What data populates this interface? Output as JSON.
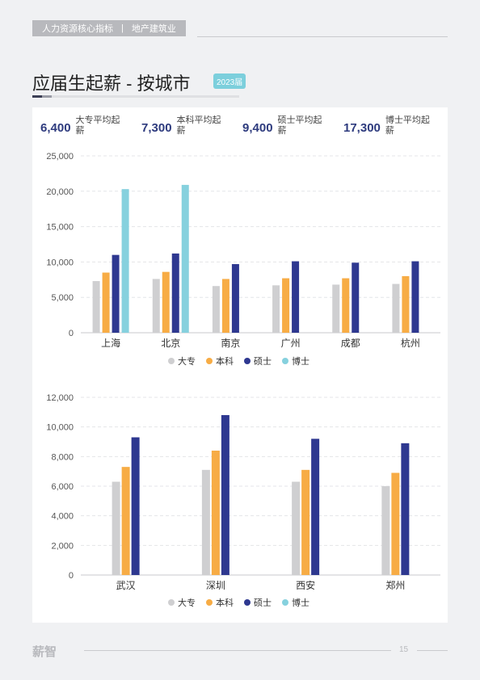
{
  "header": {
    "category": "人力资源核心指标",
    "separator": "|",
    "industry": "地产建筑业"
  },
  "title": "应届生起薪 - 按城市",
  "badge": "2023届",
  "stats": [
    {
      "value": "6,400",
      "label": "大专平均起薪"
    },
    {
      "value": "7,300",
      "label": "本科平均起薪"
    },
    {
      "value": "9,400",
      "label": "硕士平均起薪"
    },
    {
      "value": "17,300",
      "label": "博士平均起薪"
    }
  ],
  "colors": {
    "大专": "#cfcfd1",
    "本科": "#f7ac45",
    "硕士": "#2e3890",
    "博士": "#86d1de"
  },
  "chart_data": [
    {
      "type": "bar",
      "categories": [
        "上海",
        "北京",
        "南京",
        "广州",
        "成都",
        "杭州"
      ],
      "series": [
        {
          "name": "大专",
          "values": [
            7300,
            7600,
            6600,
            6700,
            6800,
            6900
          ]
        },
        {
          "name": "本科",
          "values": [
            8500,
            8600,
            7600,
            7700,
            7700,
            8000
          ]
        },
        {
          "name": "硕士",
          "values": [
            11000,
            11200,
            9700,
            10100,
            9900,
            10100
          ]
        },
        {
          "name": "博士",
          "values": [
            20300,
            20900,
            null,
            null,
            null,
            null
          ]
        }
      ],
      "yticks": [
        "0",
        "5,000",
        "10,000",
        "15,000",
        "20,000",
        "25,000"
      ],
      "ylim": [
        0,
        25000
      ],
      "legend": [
        "大专",
        "本科",
        "硕士",
        "博士"
      ],
      "legend_position": "bottom"
    },
    {
      "type": "bar",
      "categories": [
        "武汉",
        "深圳",
        "西安",
        "郑州"
      ],
      "series": [
        {
          "name": "大专",
          "values": [
            6300,
            7100,
            6300,
            6000
          ]
        },
        {
          "name": "本科",
          "values": [
            7300,
            8400,
            7100,
            6900
          ]
        },
        {
          "name": "硕士",
          "values": [
            9300,
            10800,
            9200,
            8900
          ]
        },
        {
          "name": "博士",
          "values": [
            null,
            null,
            null,
            null
          ]
        }
      ],
      "yticks": [
        "0",
        "2,000",
        "4,000",
        "6,000",
        "8,000",
        "10,000",
        "12,000"
      ],
      "ylim": [
        0,
        12000
      ],
      "legend": [
        "大专",
        "本科",
        "硕士",
        "博士"
      ],
      "legend_position": "bottom"
    }
  ],
  "footer": {
    "logo": "薪智",
    "page": "15"
  }
}
